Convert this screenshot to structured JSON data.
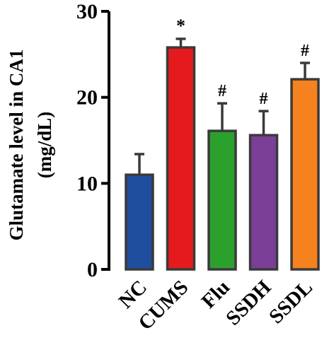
{
  "chart_data": {
    "type": "bar",
    "ylabel_line1": "Glutamate level in CA1",
    "ylabel_line2": "(mg/dL)",
    "ylim": [
      0,
      30
    ],
    "yticks": [
      "0",
      "10",
      "20",
      "30"
    ],
    "categories": [
      "NC",
      "CUMS",
      "Flu",
      "SSDH",
      "SSDL"
    ],
    "values": [
      11.0,
      25.8,
      16.1,
      15.6,
      22.1
    ],
    "errors": [
      2.4,
      1.0,
      3.2,
      2.8,
      1.9
    ],
    "significance": [
      "",
      "*",
      "#",
      "#",
      "#"
    ],
    "colors": [
      "#1f4e9e",
      "#e41a1c",
      "#2ca02c",
      "#7b3f98",
      "#f5821f"
    ],
    "grid": false,
    "legend": "none"
  }
}
